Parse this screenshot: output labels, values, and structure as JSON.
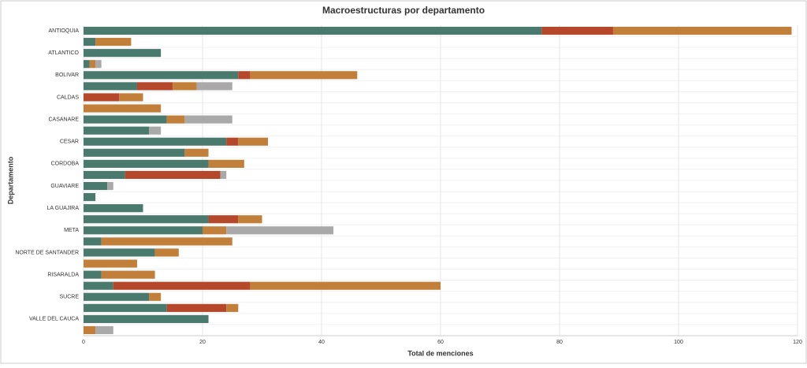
{
  "chart_data": {
    "type": "stacked-bar-horizontal",
    "title": "Macroestructuras por departamento",
    "xlabel": "Total de menciones",
    "ylabel": "Departamento",
    "categories": [
      "ANTIOQUIA",
      null,
      "ATLANTICO",
      null,
      "BOLIVAR",
      null,
      "CALDAS",
      null,
      "CASANARE",
      null,
      "CESAR",
      null,
      "CORDOBA",
      null,
      "GUAVIARE",
      null,
      "LA GUAJIRA",
      null,
      "META",
      null,
      "NORTE DE SANTANDER",
      null,
      "RISARALDA",
      null,
      "SUCRE",
      null,
      "VALLE DEL CAUCA",
      null
    ],
    "series": [
      {
        "color": "#4a7a6e",
        "values": [
          77,
          2,
          13,
          1,
          26,
          9,
          0,
          0,
          14,
          11,
          24,
          17,
          21,
          7,
          4,
          2,
          10,
          21,
          20,
          3,
          12,
          0,
          3,
          5,
          11,
          14,
          21,
          0
        ]
      },
      {
        "color": "#b5472a",
        "values": [
          12,
          0,
          0,
          0,
          2,
          6,
          6,
          0,
          0,
          0,
          2,
          0,
          0,
          16,
          0,
          0,
          0,
          5,
          0,
          0,
          0,
          0,
          0,
          23,
          0,
          10,
          0,
          0
        ]
      },
      {
        "color": "#c17f3a",
        "values": [
          30,
          6,
          0,
          1,
          18,
          4,
          4,
          13,
          3,
          0,
          5,
          4,
          6,
          0,
          0,
          0,
          0,
          4,
          4,
          22,
          4,
          9,
          9,
          32,
          2,
          2,
          0,
          2
        ]
      },
      {
        "color": "#a9a9a9",
        "values": [
          0,
          0,
          0,
          1,
          0,
          6,
          0,
          0,
          8,
          2,
          0,
          0,
          0,
          1,
          1,
          0,
          0,
          0,
          18,
          0,
          0,
          0,
          0,
          0,
          0,
          0,
          0,
          3
        ]
      }
    ],
    "xlim": [
      0,
      120
    ],
    "xticks": [
      0,
      20,
      40,
      60,
      80,
      100,
      120
    ],
    "grid": true
  }
}
